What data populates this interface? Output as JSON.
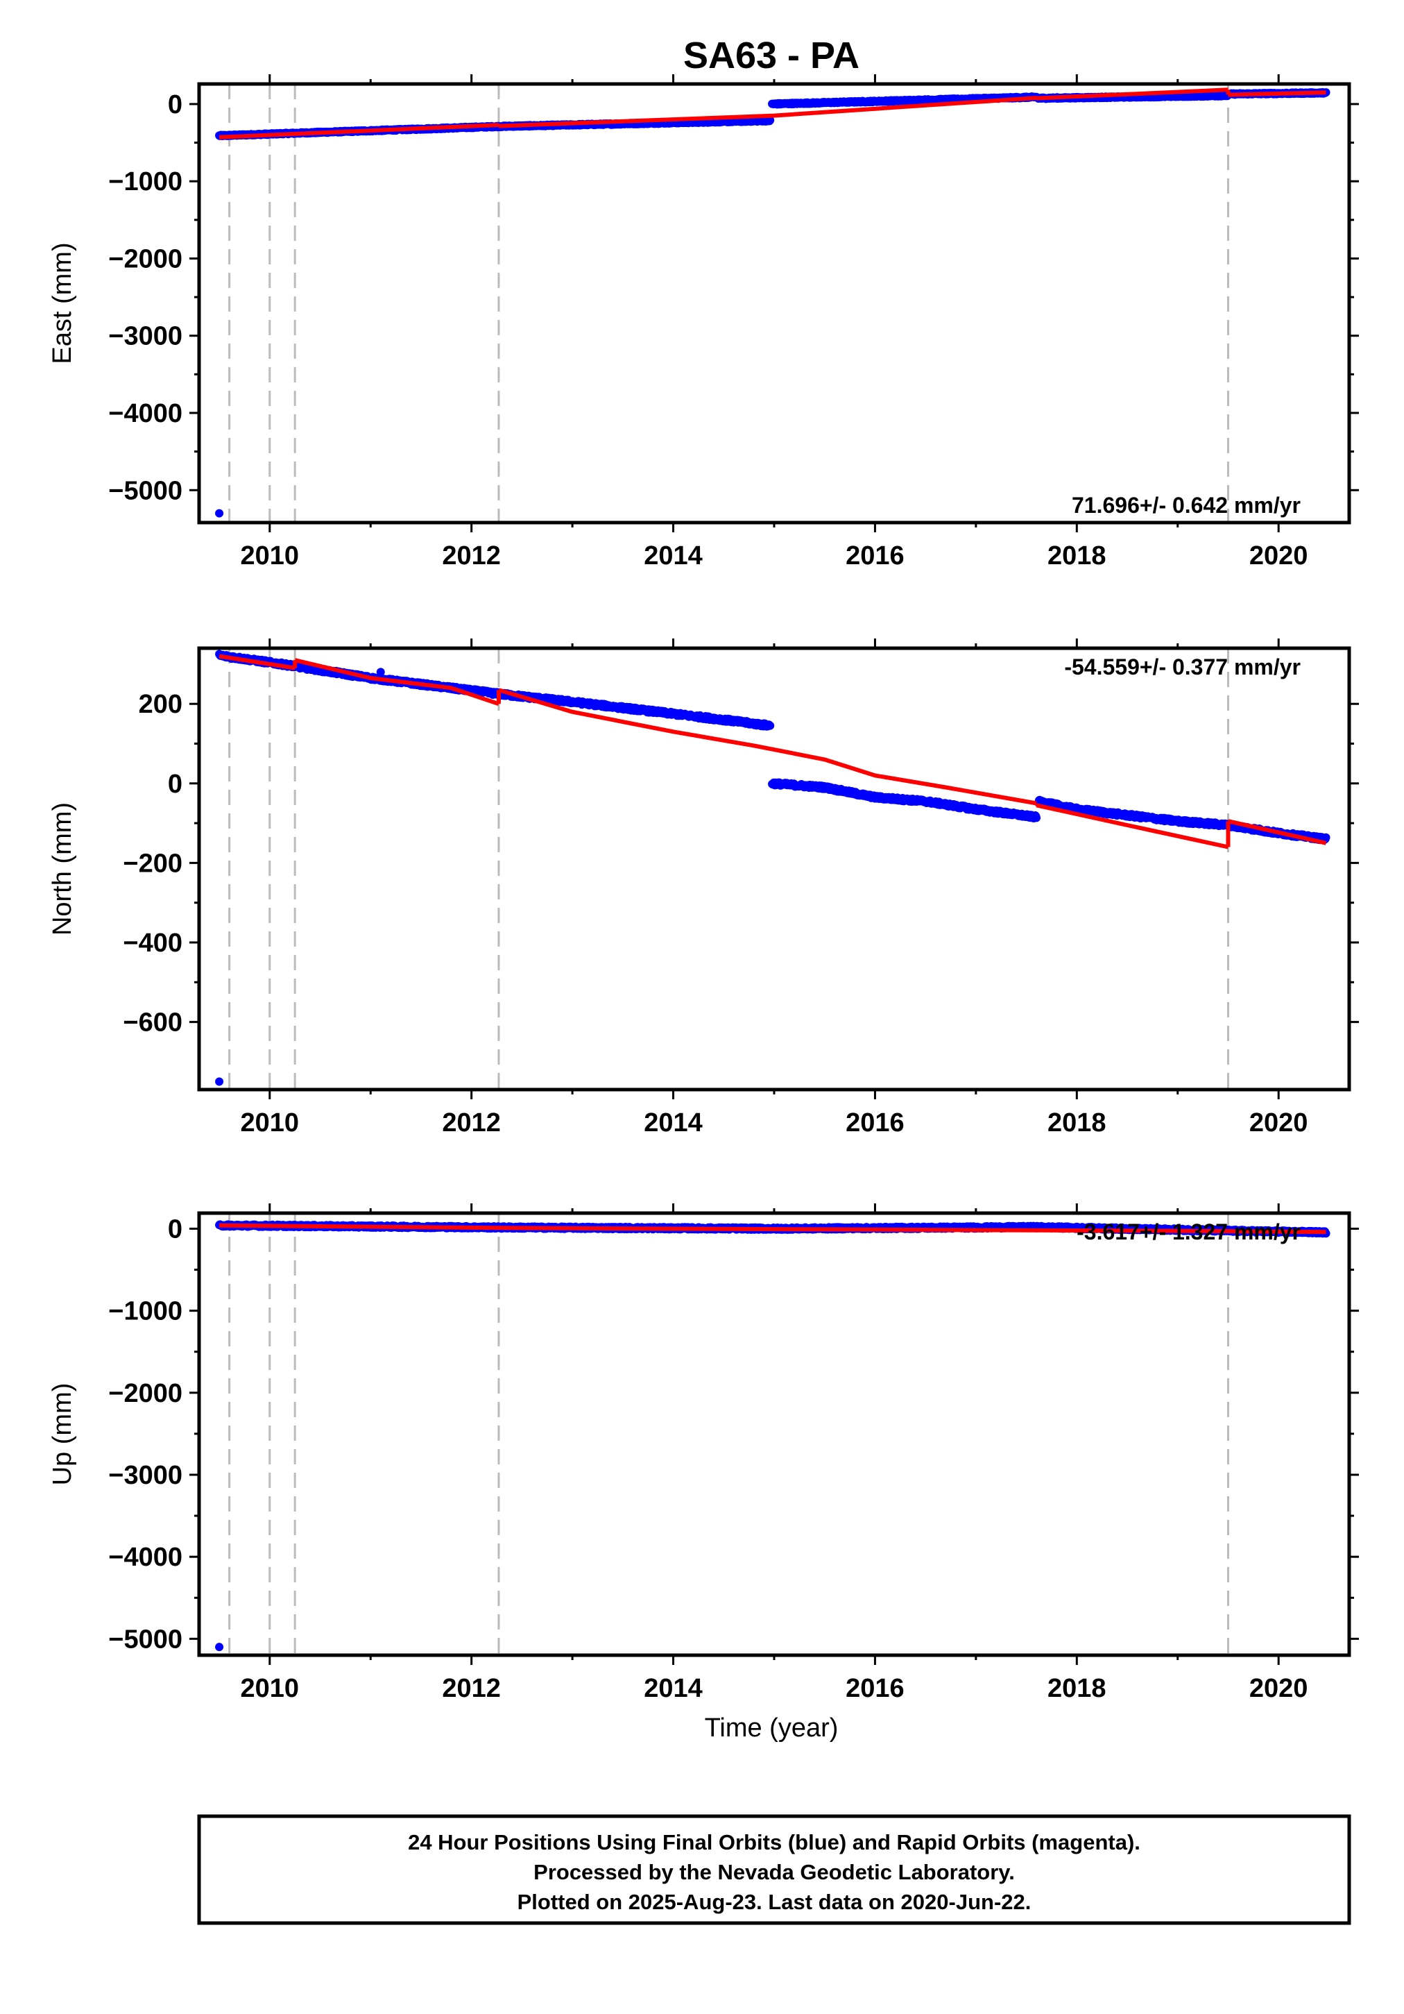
{
  "title": "SA63 - PA",
  "xlabel": "Time (year)",
  "footer": {
    "line1": "24 Hour Positions Using Final Orbits (blue) and Rapid Orbits (magenta).",
    "line2": "Processed by the Nevada Geodetic Laboratory.",
    "line3": "Plotted on 2025-Aug-23. Last data on 2020-Jun-22."
  },
  "colors": {
    "data": "#0000ff",
    "model": "#ff0000",
    "events": "#bbbbbb"
  },
  "chart_data": [
    {
      "type": "scatter",
      "component": "east",
      "ylabel": "East (mm)",
      "rate": "71.696+/- 0.642 mm/yr",
      "xlim": [
        2009.3,
        2020.7
      ],
      "ylim": [
        -5420,
        260
      ],
      "yticks": [
        0,
        -1000,
        -2000,
        -3000,
        -4000,
        -5000
      ],
      "xticks": [
        2010,
        2012,
        2014,
        2016,
        2018,
        2020
      ],
      "events": [
        2009.6,
        2010.0,
        2010.25,
        2012.27,
        2019.5
      ],
      "outliers": [
        {
          "x": 2009.5,
          "y": -5300
        }
      ],
      "data_segments": [
        {
          "x": [
            2009.5,
            2012.27,
            2014.96
          ],
          "y": [
            -410,
            -290,
            -215
          ]
        },
        {
          "x": [
            2014.98,
            2017.6
          ],
          "y": [
            0,
            90
          ]
        },
        {
          "x": [
            2017.62,
            2019.5
          ],
          "y": [
            75,
            110
          ]
        },
        {
          "x": [
            2019.52,
            2020.47
          ],
          "y": [
            130,
            145
          ]
        }
      ],
      "model_segments": [
        {
          "x": [
            2009.5,
            2012.27
          ],
          "y": [
            -430,
            -270
          ]
        },
        {
          "x": [
            2012.27,
            2015.0,
            2017.6
          ],
          "y": [
            -285,
            -150,
            80
          ]
        },
        {
          "x": [
            2017.6,
            2019.5
          ],
          "y": [
            75,
            185
          ]
        },
        {
          "x": [
            2019.5,
            2020.47
          ],
          "y": [
            120,
            150
          ]
        }
      ]
    },
    {
      "type": "scatter",
      "component": "north",
      "ylabel": "North (mm)",
      "rate": "-54.559+/- 0.377 mm/yr",
      "xlim": [
        2009.3,
        2020.7
      ],
      "ylim": [
        -770,
        340
      ],
      "yticks": [
        200,
        0,
        -200,
        -400,
        -600
      ],
      "xticks": [
        2010,
        2012,
        2014,
        2016,
        2018,
        2020
      ],
      "events": [
        2009.6,
        2010.0,
        2010.25,
        2012.27,
        2019.5
      ],
      "outliers": [
        {
          "x": 2009.5,
          "y": -750
        },
        {
          "x": 2011.1,
          "y": 280
        }
      ],
      "data_segments": [
        {
          "x": [
            2009.5,
            2010.25,
            2011.0,
            2012.27,
            2013.0,
            2014.0,
            2014.5,
            2014.96
          ],
          "y": [
            322,
            295,
            265,
            225,
            205,
            175,
            160,
            145
          ]
        },
        {
          "x": [
            2014.98,
            2015.5,
            2016.0,
            2016.5,
            2017.0,
            2017.6
          ],
          "y": [
            0,
            -10,
            -35,
            -45,
            -65,
            -85
          ]
        },
        {
          "x": [
            2017.62,
            2018.0,
            2018.5,
            2019.0,
            2019.5,
            2020.0,
            2020.47
          ],
          "y": [
            -45,
            -65,
            -80,
            -95,
            -105,
            -125,
            -140
          ]
        }
      ],
      "model_segments": [
        {
          "x": [
            2009.5,
            2010.25
          ],
          "y": [
            320,
            290
          ]
        },
        {
          "x": [
            2010.25,
            2011.0,
            2011.8,
            2012.27
          ],
          "y": [
            310,
            265,
            240,
            200
          ]
        },
        {
          "x": [
            2012.27,
            2013.0,
            2014.0,
            2014.8,
            2015.5,
            2016.0,
            2016.7,
            2017.6
          ],
          "y": [
            235,
            180,
            130,
            95,
            60,
            20,
            -10,
            -50
          ]
        },
        {
          "x": [
            2017.6,
            2018.5,
            2019.5
          ],
          "y": [
            -55,
            -105,
            -160
          ]
        },
        {
          "x": [
            2019.5,
            2020.47
          ],
          "y": [
            -95,
            -150
          ]
        }
      ]
    },
    {
      "type": "scatter",
      "component": "up",
      "ylabel": "Up (mm)",
      "rate": "-3.617+/- 1.327 mm/yr",
      "xlim": [
        2009.3,
        2020.7
      ],
      "ylim": [
        -5200,
        190
      ],
      "yticks": [
        0,
        -1000,
        -2000,
        -3000,
        -4000,
        -5000
      ],
      "xticks": [
        2010,
        2012,
        2014,
        2016,
        2018,
        2020
      ],
      "events": [
        2009.6,
        2010.0,
        2010.25,
        2012.27,
        2019.5
      ],
      "outliers": [
        {
          "x": 2009.5,
          "y": -5100
        }
      ],
      "data_segments": [
        {
          "x": [
            2009.5,
            2012.27,
            2015.0,
            2017.6,
            2019.5,
            2020.47
          ],
          "y": [
            40,
            15,
            0,
            20,
            -25,
            -45
          ]
        }
      ],
      "model_segments": [
        {
          "x": [
            2009.5,
            2012.27,
            2017.6,
            2019.5,
            2020.47
          ],
          "y": [
            40,
            10,
            -20,
            -30,
            -40
          ]
        }
      ]
    }
  ]
}
